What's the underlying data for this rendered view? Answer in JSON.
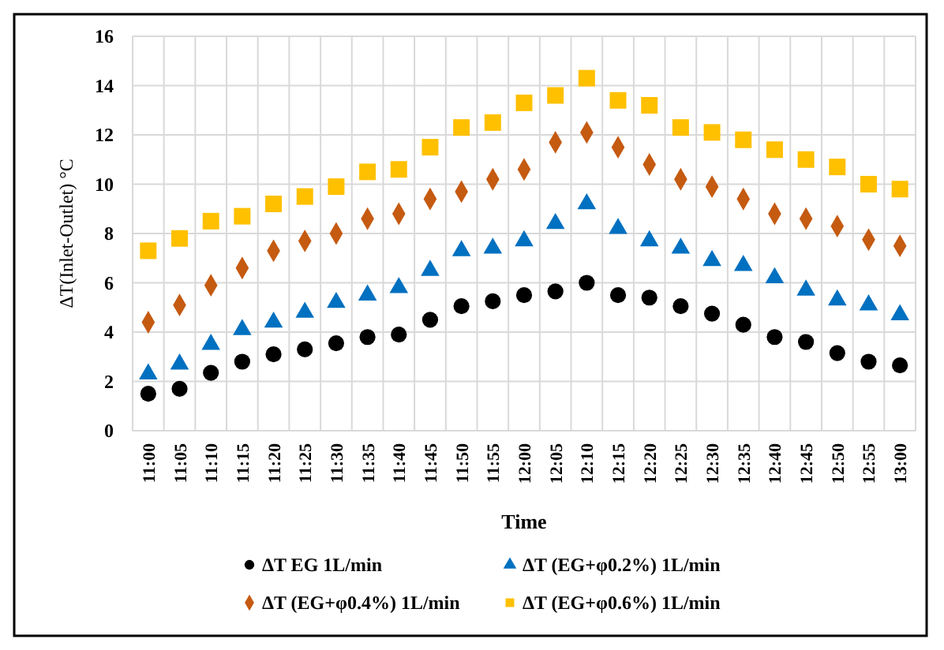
{
  "chart_data": {
    "type": "scatter",
    "xlabel": "Time",
    "ylabel": "ΔT(Inlet-Outlet) °C",
    "categories": [
      "11:00",
      "11:05",
      "11:10",
      "11:15",
      "11:20",
      "11:25",
      "11:30",
      "11:35",
      "11:40",
      "11:45",
      "11:50",
      "11:55",
      "12:00",
      "12:05",
      "12:10",
      "12:15",
      "12:20",
      "12:25",
      "12:30",
      "12:35",
      "12:40",
      "12:45",
      "12:50",
      "12:55",
      "13:00"
    ],
    "ylim": [
      0,
      16
    ],
    "yticks": [
      0,
      2,
      4,
      6,
      8,
      10,
      12,
      14,
      16
    ],
    "grid": true,
    "legend": "bottom",
    "series": [
      {
        "name": "ΔT EG 1L/min",
        "color": "#000000",
        "marker": "circle",
        "values": [
          1.5,
          1.7,
          2.35,
          2.8,
          3.1,
          3.3,
          3.55,
          3.8,
          3.9,
          4.5,
          5.05,
          5.25,
          5.5,
          5.65,
          6.0,
          5.5,
          5.4,
          5.05,
          4.75,
          4.3,
          3.8,
          3.6,
          3.15,
          2.8,
          2.65
        ]
      },
      {
        "name": "ΔT (EG+φ0.2%) 1L/min",
        "color": "#0070c0",
        "marker": "triangle",
        "values": [
          2.3,
          2.7,
          3.5,
          4.1,
          4.4,
          4.8,
          5.2,
          5.5,
          5.8,
          6.5,
          7.3,
          7.4,
          7.7,
          8.4,
          9.2,
          8.2,
          7.7,
          7.4,
          6.9,
          6.7,
          6.2,
          5.7,
          5.3,
          5.1,
          4.7
        ]
      },
      {
        "name": "ΔT (EG+φ0.4%) 1L/min",
        "color": "#c55a11",
        "marker": "diamond",
        "values": [
          4.4,
          5.1,
          5.9,
          6.6,
          7.3,
          7.7,
          8.0,
          8.6,
          8.8,
          9.4,
          9.7,
          10.2,
          10.6,
          11.7,
          12.1,
          11.5,
          10.8,
          10.2,
          9.9,
          9.4,
          8.8,
          8.6,
          8.3,
          7.75,
          7.5
        ]
      },
      {
        "name": "ΔT (EG+φ0.6%) 1L/min",
        "color": "#ffc000",
        "marker": "square",
        "values": [
          7.3,
          7.8,
          8.5,
          8.7,
          9.2,
          9.5,
          9.9,
          10.5,
          10.6,
          11.5,
          12.3,
          12.5,
          13.3,
          13.6,
          14.3,
          13.4,
          13.2,
          12.3,
          12.1,
          11.8,
          11.4,
          11.0,
          10.7,
          10.0,
          9.8
        ]
      }
    ]
  }
}
